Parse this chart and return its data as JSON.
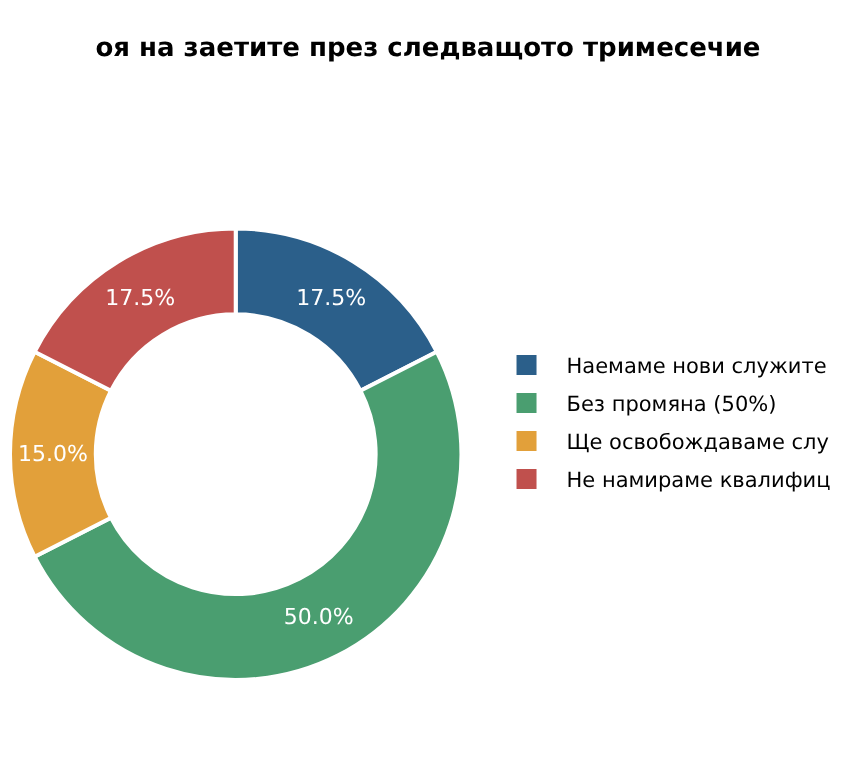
{
  "chart_data": {
    "type": "donut",
    "title": "оя на заетите през следващото тримесечие",
    "categories": [
      "Наемаме нови служите",
      "Без промяна (50%)",
      "Ще освобождаваме слу",
      "Не намираме квалифиц"
    ],
    "values": [
      17.5,
      50,
      15,
      17.5
    ],
    "colors": [
      "#2b5f8a",
      "#4a9e70",
      "#e2a03a",
      "#c0504d"
    ],
    "value_labels": [
      "17.5%",
      "50.0%",
      "15.0%",
      "17.5%"
    ],
    "legend": "right"
  }
}
